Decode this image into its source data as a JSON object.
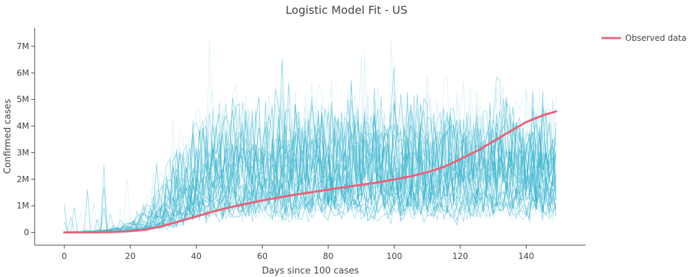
{
  "chart_data": {
    "type": "line",
    "title": "Logistic Model Fit - US",
    "xlabel": "Days since 100 cases",
    "ylabel": "Confirmed cases",
    "xlim": [
      -9,
      158
    ],
    "ylim": [
      -480000,
      7700000
    ],
    "x_ticks": [
      0,
      20,
      40,
      60,
      80,
      100,
      120,
      140
    ],
    "x_tick_labels": [
      "0",
      "20",
      "40",
      "60",
      "80",
      "100",
      "120",
      "140"
    ],
    "y_ticks": [
      0,
      1000000,
      2000000,
      3000000,
      4000000,
      5000000,
      6000000,
      7000000
    ],
    "y_tick_labels": [
      "0",
      "1M",
      "2M",
      "3M",
      "4M",
      "5M",
      "6M",
      "7M"
    ],
    "grid": false,
    "legend": {
      "position": "top-right",
      "entries": [
        "Observed data"
      ]
    },
    "series": [
      {
        "name": "Observed data",
        "color": "#e8637a",
        "x": [
          0,
          5,
          10,
          15,
          20,
          25,
          30,
          35,
          40,
          45,
          50,
          55,
          60,
          65,
          70,
          75,
          80,
          85,
          90,
          95,
          100,
          105,
          110,
          115,
          120,
          125,
          130,
          135,
          140,
          145,
          149
        ],
        "values": [
          0,
          1000,
          3000,
          15000,
          45000,
          110000,
          250000,
          420000,
          600000,
          780000,
          940000,
          1070000,
          1200000,
          1310000,
          1420000,
          1510000,
          1610000,
          1700000,
          1790000,
          1880000,
          1990000,
          2110000,
          2260000,
          2460000,
          2750000,
          3060000,
          3420000,
          3790000,
          4150000,
          4400000,
          4550000
        ]
      }
    ],
    "simulations": {
      "color": "#2fb0cc",
      "count": 100,
      "x_range": [
        0,
        149
      ],
      "description_values": {
        "plateau_range": [
          900000,
          3600000
        ],
        "typical_median": 2200000,
        "rise_center_day": 34,
        "max_value": 7250000
      }
    }
  }
}
